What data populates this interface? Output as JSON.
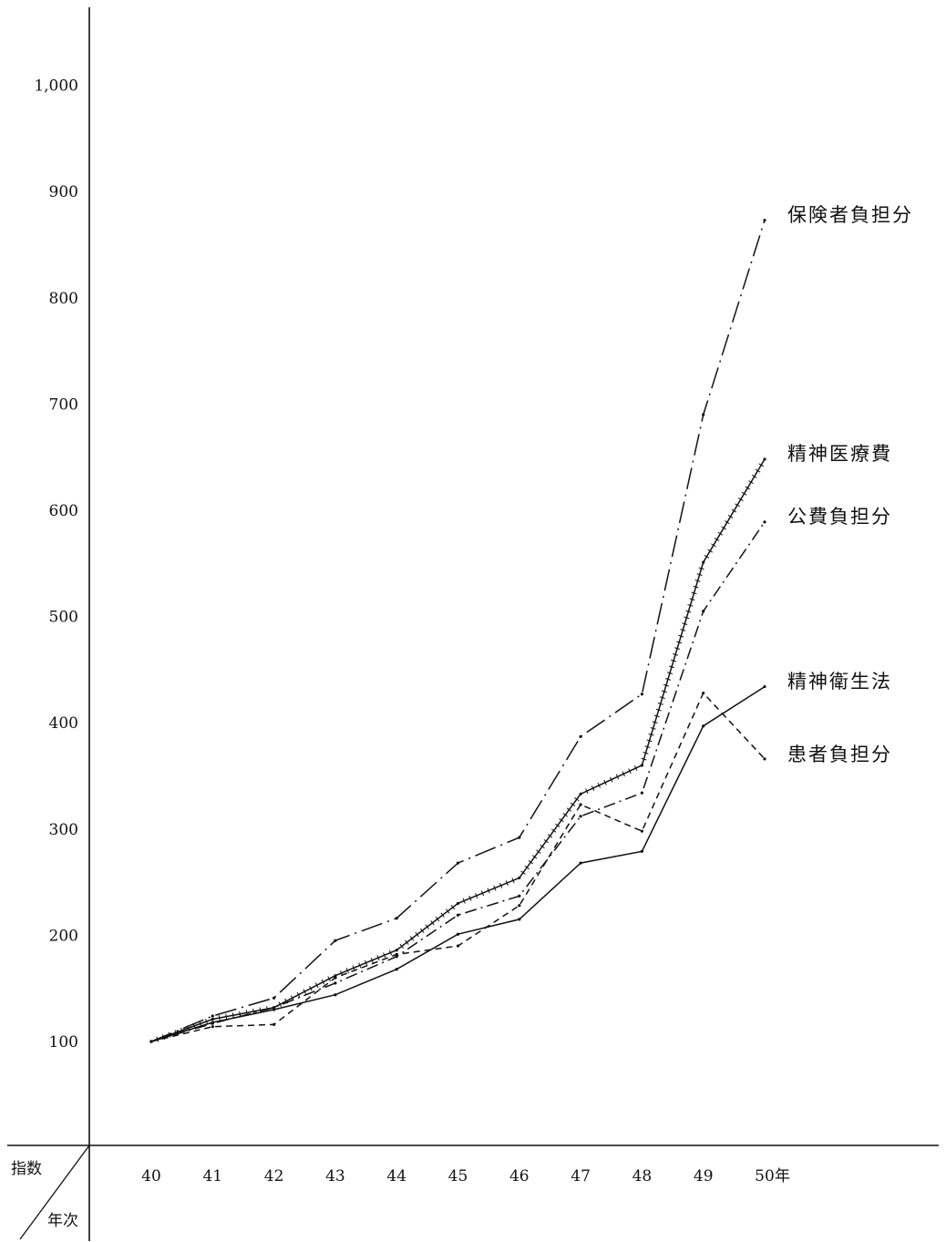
{
  "chart_data": {
    "type": "line",
    "title": "",
    "xlabel": "年次",
    "ylabel": "指数",
    "x_unit_suffix": "年",
    "categories": [
      "40",
      "41",
      "42",
      "43",
      "44",
      "45",
      "46",
      "47",
      "48",
      "49",
      "50"
    ],
    "ylim": [
      0,
      1050
    ],
    "yticks": [
      100,
      200,
      300,
      400,
      500,
      600,
      700,
      800,
      900,
      1000
    ],
    "ytick_labels": [
      "100",
      "200",
      "300",
      "400",
      "500",
      "600",
      "700",
      "800",
      "900",
      "1,000"
    ],
    "grid": false,
    "legend": "inline labels at right end of each line",
    "series": [
      {
        "name": "保険者負担分",
        "line_style": "long-dash-dot",
        "values": [
          100,
          124,
          141,
          195,
          216,
          268,
          292,
          387,
          427,
          690,
          873
        ]
      },
      {
        "name": "精神医療費",
        "line_style": "solid-with-ticks",
        "values": [
          100,
          121,
          132,
          162,
          186,
          230,
          254,
          333,
          360,
          551,
          648
        ]
      },
      {
        "name": "公費負担分",
        "line_style": "dash-dot",
        "values": [
          100,
          117,
          132,
          155,
          180,
          219,
          237,
          312,
          334,
          505,
          589
        ]
      },
      {
        "name": "精神衛生法",
        "line_style": "solid",
        "values": [
          100,
          118,
          130,
          144,
          168,
          201,
          215,
          268,
          279,
          397,
          434
        ]
      },
      {
        "name": "患者負担分",
        "line_style": "dashed",
        "values": [
          100,
          114,
          116,
          160,
          182,
          190,
          228,
          323,
          298,
          428,
          366
        ]
      }
    ]
  }
}
